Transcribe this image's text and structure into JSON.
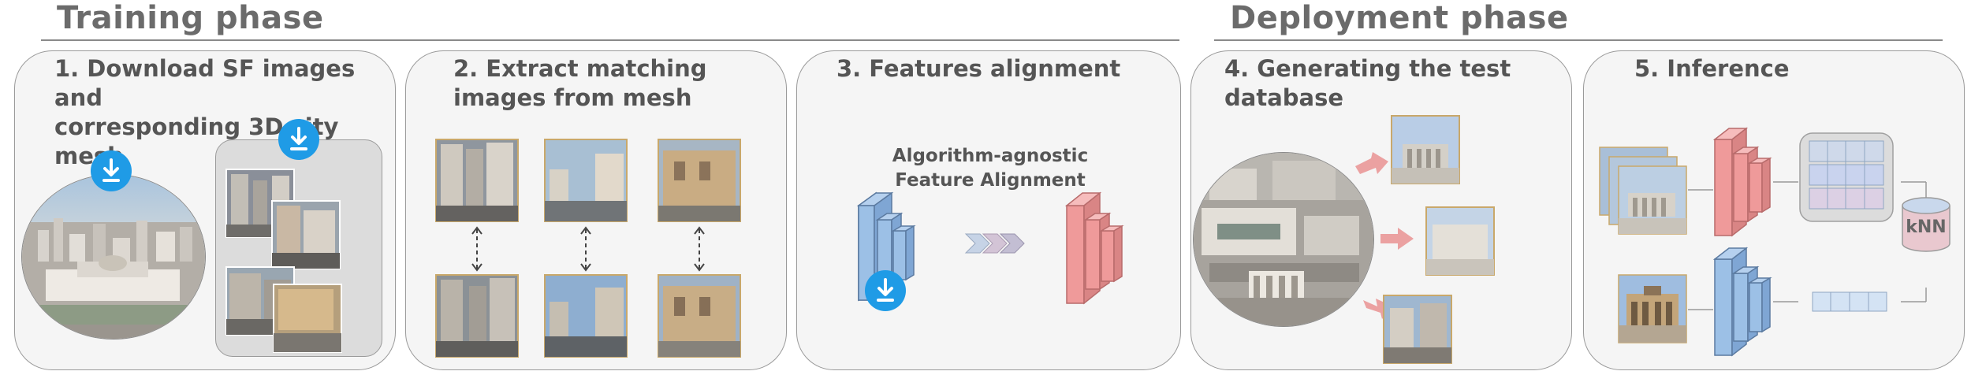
{
  "phases": {
    "training": "Training phase",
    "deployment": "Deployment phase"
  },
  "panels": [
    {
      "title": "1. Download SF images and\ncorresponding 3D city mesh"
    },
    {
      "title": "2. Extract matching\nimages from mesh"
    },
    {
      "title": "3. Features alignment"
    },
    {
      "title": "4. Generating the test\ndatabase"
    },
    {
      "title": "5. Inference"
    }
  ],
  "alignment_label": "Algorithm-agnostic\nFeature Alignment",
  "knn_label": "kNN",
  "colors": {
    "download_badge": "#1f9be6",
    "encoder_blue": "#9cc0e6",
    "encoder_red": "#ef9a9a",
    "panel_bg": "#f5f5f5",
    "photo_border": "#c9a86a"
  },
  "icons": [
    "download-icon",
    "chevron-arrows-icon",
    "arrow-icon"
  ]
}
